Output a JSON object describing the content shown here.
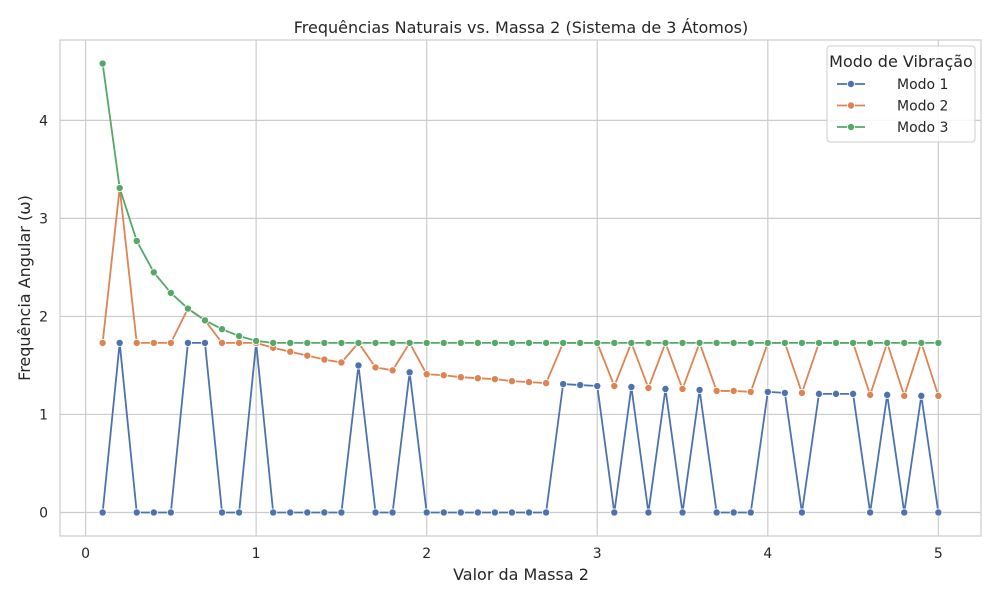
{
  "chart_data": {
    "type": "line",
    "title": "Frequências Naturais vs. Massa 2 (Sistema de 3 Átomos)",
    "xlabel": "Valor da Massa 2",
    "ylabel": "Frequência Angular (ω)",
    "xlim": [
      -0.15,
      5.25
    ],
    "ylim": [
      -0.24,
      4.82
    ],
    "xticks": [
      0,
      1,
      2,
      3,
      4,
      5
    ],
    "yticks": [
      0,
      1,
      2,
      3,
      4
    ],
    "grid": true,
    "legend_title": "Modo de Vibração",
    "legend_position": "top-right",
    "x": [
      0.1,
      0.2,
      0.3,
      0.4,
      0.5,
      0.6,
      0.7,
      0.8,
      0.9,
      1.0,
      1.1,
      1.2,
      1.3,
      1.4,
      1.5,
      1.6,
      1.7,
      1.8,
      1.9,
      2.0,
      2.1,
      2.2,
      2.3,
      2.4,
      2.5,
      2.6,
      2.7,
      2.8,
      2.9,
      3.0,
      3.1,
      3.2,
      3.3,
      3.4,
      3.5,
      3.6,
      3.7,
      3.8,
      3.9,
      4.0,
      4.1,
      4.2,
      4.3,
      4.4,
      4.5,
      4.6,
      4.7,
      4.8,
      4.9,
      5.0
    ],
    "series": [
      {
        "name": "Modo 1",
        "color": "#4c72b0",
        "values": [
          0,
          1.73,
          0,
          0,
          0,
          1.73,
          1.73,
          0,
          0,
          1.73,
          0,
          0,
          0,
          0,
          0,
          1.5,
          0,
          0,
          1.43,
          0,
          0,
          0,
          0,
          0,
          0,
          0,
          0,
          1.31,
          1.3,
          1.29,
          0,
          1.28,
          0,
          1.26,
          0,
          1.25,
          0,
          0,
          0,
          1.23,
          1.22,
          0,
          1.21,
          1.21,
          1.21,
          0,
          1.2,
          0,
          1.19,
          0
        ]
      },
      {
        "name": "Modo 2",
        "color": "#dd8452",
        "values": [
          1.73,
          3.31,
          1.73,
          1.73,
          1.73,
          2.08,
          1.96,
          1.73,
          1.73,
          1.73,
          1.68,
          1.64,
          1.6,
          1.56,
          1.53,
          1.73,
          1.48,
          1.45,
          1.73,
          1.41,
          1.4,
          1.38,
          1.37,
          1.36,
          1.34,
          1.33,
          1.32,
          1.73,
          1.73,
          1.73,
          1.29,
          1.73,
          1.27,
          1.73,
          1.26,
          1.73,
          1.24,
          1.24,
          1.23,
          1.73,
          1.73,
          1.22,
          1.73,
          1.73,
          1.73,
          1.2,
          1.73,
          1.19,
          1.73,
          1.19
        ]
      },
      {
        "name": "Modo 3",
        "color": "#55a868",
        "values": [
          4.58,
          3.31,
          2.77,
          2.45,
          2.24,
          2.08,
          1.96,
          1.87,
          1.8,
          1.75,
          1.73,
          1.73,
          1.73,
          1.73,
          1.73,
          1.73,
          1.73,
          1.73,
          1.73,
          1.73,
          1.73,
          1.73,
          1.73,
          1.73,
          1.73,
          1.73,
          1.73,
          1.73,
          1.73,
          1.73,
          1.73,
          1.73,
          1.73,
          1.73,
          1.73,
          1.73,
          1.73,
          1.73,
          1.73,
          1.73,
          1.73,
          1.73,
          1.73,
          1.73,
          1.73,
          1.73,
          1.73,
          1.73,
          1.73,
          1.73
        ]
      }
    ]
  }
}
